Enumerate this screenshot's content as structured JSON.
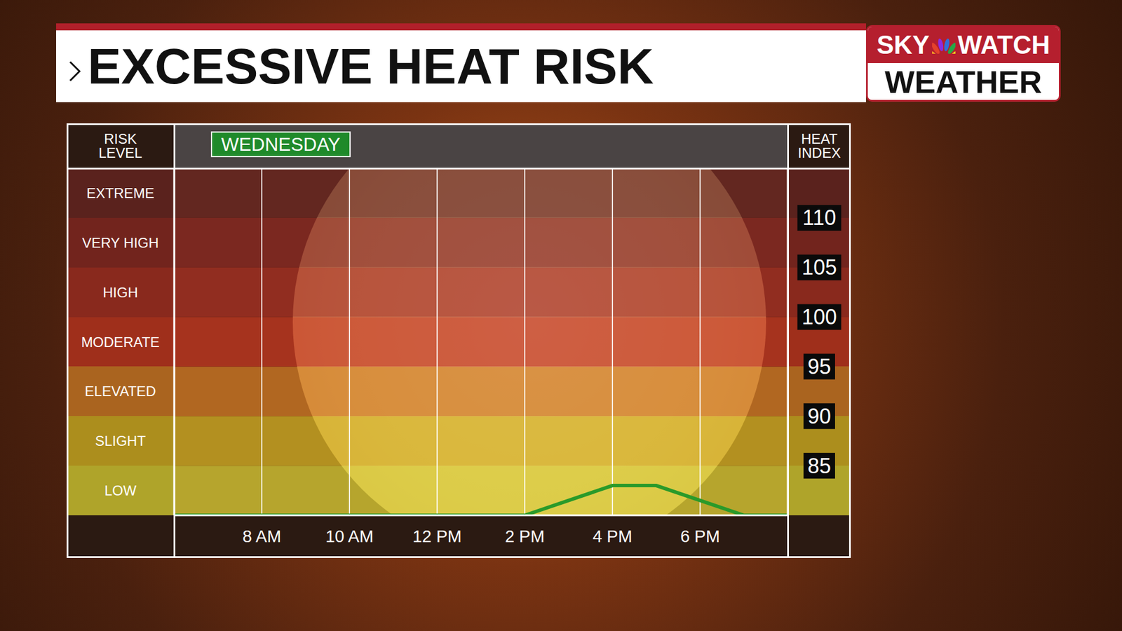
{
  "title": "EXCESSIVE HEAT RISK",
  "logo": {
    "line1": [
      "SKY",
      "WATCH"
    ],
    "line2": "WEATHER"
  },
  "chart_data": {
    "type": "line",
    "day": "WEDNESDAY",
    "risk_header": "RISK LEVEL",
    "heat_index_header": "HEAT INDEX",
    "x": [
      6,
      8,
      10,
      12,
      14,
      16,
      17,
      19,
      20
    ],
    "values": [
      80,
      80,
      80,
      80,
      80,
      83,
      83,
      80,
      80
    ],
    "color": "#2a9a2a",
    "xlim": [
      6,
      20
    ],
    "xticks": [
      {
        "value": 8,
        "label": "8 AM"
      },
      {
        "value": 10,
        "label": "10 AM"
      },
      {
        "value": 12,
        "label": "12 PM"
      },
      {
        "value": 14,
        "label": "2 PM"
      },
      {
        "value": 16,
        "label": "4 PM"
      },
      {
        "value": 18,
        "label": "6 PM"
      }
    ],
    "ylim": [
      80,
      115
    ],
    "yticks": [
      85,
      90,
      95,
      100,
      105,
      110
    ],
    "grid": true,
    "bands": [
      {
        "label": "LOW",
        "from": 80,
        "to": 85,
        "color": "#d6c834"
      },
      {
        "label": "SLIGHT",
        "from": 85,
        "to": 90,
        "color": "#d2ae24"
      },
      {
        "label": "ELEVATED",
        "from": 90,
        "to": 95,
        "color": "#d07a26"
      },
      {
        "label": "MODERATE",
        "from": 95,
        "to": 100,
        "color": "#c23a22"
      },
      {
        "label": "HIGH",
        "from": 100,
        "to": 105,
        "color": "#a83224"
      },
      {
        "label": "VERY HIGH",
        "from": 105,
        "to": 110,
        "color": "#8c2c24"
      },
      {
        "label": "EXTREME",
        "from": 110,
        "to": 115,
        "color": "#6e2a24"
      }
    ]
  }
}
